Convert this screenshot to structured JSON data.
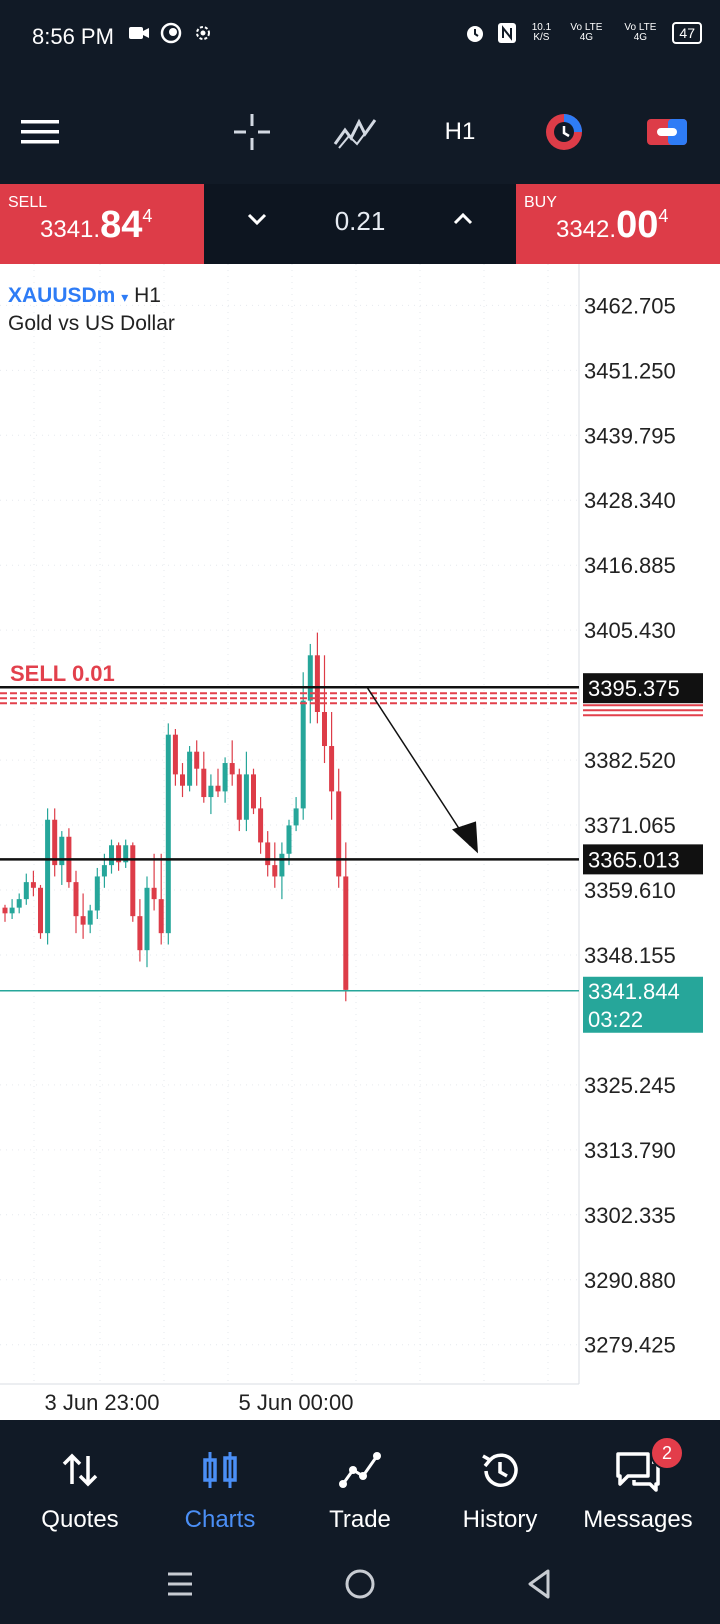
{
  "status_bar": {
    "time": "8:56 PM",
    "network_speed": "10.1 K/S",
    "sim1": "Vo LTE 4G",
    "sim2": "Vo LTE 4G",
    "battery": "47"
  },
  "toolbar": {
    "menu_icon": "hamburger-icon",
    "crosshair_icon": "crosshair-icon",
    "indicators_icon": "indicators-icon",
    "timeframe": "H1",
    "one_click_icon": "one-click-trading-icon",
    "account_icon": "account-icon"
  },
  "trade_panel": {
    "sell": {
      "label": "SELL",
      "price_prefix": "3341.",
      "price_big": "84",
      "price_sup": "4"
    },
    "buy": {
      "label": "BUY",
      "price_prefix": "3342.",
      "price_big": "00",
      "price_sup": "4"
    },
    "lot_size": "0.21"
  },
  "chart_header": {
    "symbol": "XAUUSDm",
    "timeframe": "H1",
    "description": "Gold vs US Dollar"
  },
  "chart_data": {
    "type": "candlestick",
    "symbol": "XAUUSDm",
    "timeframe": "H1",
    "y_ticks": [
      "3462.705",
      "3451.250",
      "3439.795",
      "3428.340",
      "3416.885",
      "3405.430",
      "3382.520",
      "3371.065",
      "3359.610",
      "3348.155",
      "3325.245",
      "3313.790",
      "3302.335",
      "3290.880",
      "3279.425"
    ],
    "ylim": [
      3272.5,
      3470
    ],
    "x_ticks": [
      "3 Jun 23:00",
      "5 Jun 00:00"
    ],
    "lines": [
      {
        "label": "3395.375",
        "price": 3395.375,
        "color": "#111111",
        "kind": "sell-order"
      },
      {
        "label": "3365.013",
        "price": 3365.013,
        "color": "#111111",
        "kind": "horizontal-line"
      },
      {
        "label": "3341.844",
        "price": 3341.844,
        "color": "#26a69a",
        "kind": "bid"
      }
    ],
    "order_label": "SELL 0.01",
    "countdown": "03:22",
    "up_color": "#26a69a",
    "down_color": "#dd3c48",
    "candles": [
      [
        3356.5,
        3357,
        3354,
        3355.5
      ],
      [
        3355.5,
        3358,
        3354.5,
        3356.5
      ],
      [
        3356.5,
        3359,
        3355.5,
        3358
      ],
      [
        3358,
        3362.5,
        3357,
        3361
      ],
      [
        3361,
        3363,
        3358.5,
        3360
      ],
      [
        3360,
        3360.5,
        3351,
        3352
      ],
      [
        3352,
        3374,
        3350,
        3372
      ],
      [
        3372,
        3374,
        3362,
        3364
      ],
      [
        3364,
        3370,
        3360.5,
        3369
      ],
      [
        3369,
        3370.5,
        3360,
        3361
      ],
      [
        3361,
        3363,
        3352,
        3355
      ],
      [
        3355,
        3359,
        3351,
        3353.5
      ],
      [
        3353.5,
        3357,
        3352,
        3356
      ],
      [
        3356,
        3363.5,
        3354.5,
        3362
      ],
      [
        3362,
        3366,
        3360,
        3364
      ],
      [
        3364,
        3368.5,
        3362.5,
        3367.5
      ],
      [
        3367.5,
        3368,
        3363,
        3364.5
      ],
      [
        3364.5,
        3368.5,
        3363.5,
        3367.5
      ],
      [
        3367.5,
        3368,
        3354,
        3355
      ],
      [
        3355,
        3358,
        3347,
        3349
      ],
      [
        3349,
        3362,
        3346,
        3360
      ],
      [
        3360,
        3366,
        3356,
        3358
      ],
      [
        3358,
        3366,
        3350,
        3352
      ],
      [
        3352,
        3389,
        3350,
        3387
      ],
      [
        3387,
        3388,
        3378,
        3380
      ],
      [
        3380,
        3382,
        3376,
        3378
      ],
      [
        3378,
        3385,
        3377,
        3384
      ],
      [
        3384,
        3386,
        3378,
        3381
      ],
      [
        3381,
        3384,
        3375,
        3376
      ],
      [
        3376,
        3380,
        3373,
        3378
      ],
      [
        3378,
        3381,
        3376,
        3377
      ],
      [
        3377,
        3383,
        3375,
        3382
      ],
      [
        3382,
        3386,
        3378,
        3380
      ],
      [
        3380,
        3381,
        3370,
        3372
      ],
      [
        3372,
        3384,
        3370,
        3380
      ],
      [
        3380,
        3381,
        3373,
        3374
      ],
      [
        3374,
        3376,
        3366,
        3368
      ],
      [
        3368,
        3370,
        3362,
        3364
      ],
      [
        3364,
        3368,
        3360,
        3362
      ],
      [
        3362,
        3368,
        3358,
        3366
      ],
      [
        3366,
        3372,
        3364,
        3371
      ],
      [
        3371,
        3376,
        3370,
        3374
      ],
      [
        3374,
        3398,
        3372,
        3393
      ],
      [
        3393,
        3403,
        3389,
        3401
      ],
      [
        3401,
        3405,
        3389,
        3391
      ],
      [
        3391,
        3401,
        3382,
        3385
      ],
      [
        3385,
        3391,
        3372,
        3377
      ],
      [
        3377,
        3381,
        3360,
        3362
      ],
      [
        3362,
        3368,
        3340,
        3342
      ]
    ]
  },
  "bottom_nav": {
    "items": [
      {
        "label": "Quotes",
        "icon": "quotes-icon",
        "active": false
      },
      {
        "label": "Charts",
        "icon": "charts-icon",
        "active": true
      },
      {
        "label": "Trade",
        "icon": "trade-icon",
        "active": false
      },
      {
        "label": "History",
        "icon": "history-icon",
        "active": false
      },
      {
        "label": "Messages",
        "icon": "messages-icon",
        "active": false,
        "badge": "2"
      }
    ]
  },
  "system_nav": {
    "recents_icon": "recents-icon",
    "home_icon": "home-icon",
    "back_icon": "back-icon"
  }
}
